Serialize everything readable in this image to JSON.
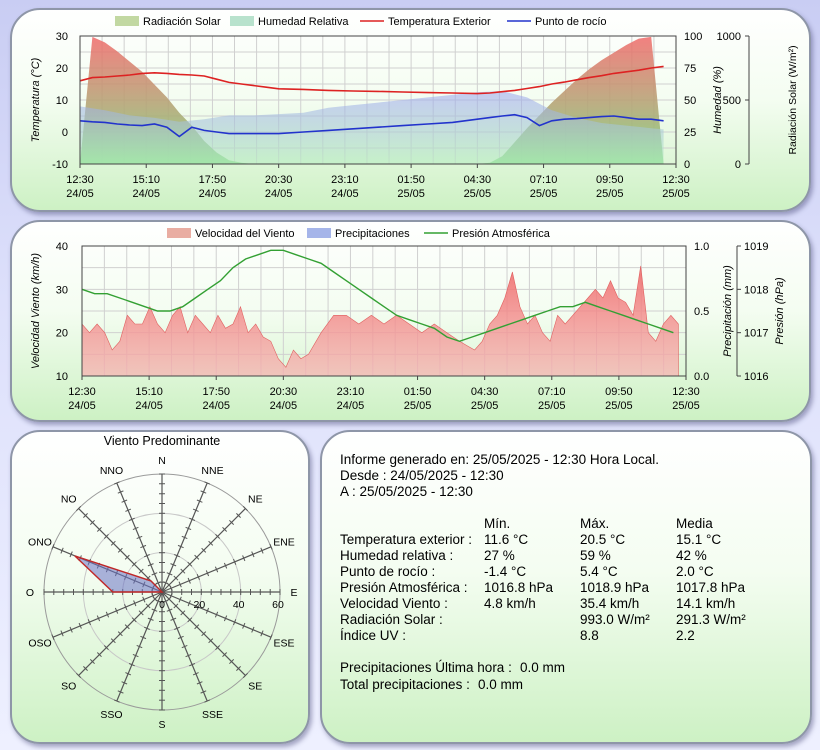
{
  "chart_data": [
    {
      "type": "area",
      "legend": [
        "Radiación Solar",
        "Humedad Relativa",
        "Temperatura Exterior",
        "Punto de rocío"
      ],
      "ylabel": "Temperatura (°C)",
      "ylabel_right": "Humedad (%)",
      "ylabel_right2": "Radiación Solar (W/m²)",
      "ylim": [
        -10,
        30
      ],
      "y_ticks": [
        "30",
        "20",
        "10",
        "0",
        "-10"
      ],
      "y2_ticks": [
        "100",
        "75",
        "50",
        "25",
        "0"
      ],
      "y3_ticks": [
        "1000",
        "500",
        "0"
      ],
      "x_ticks": [
        "12:30",
        "15:10",
        "17:50",
        "20:30",
        "23:10",
        "01:50",
        "04:30",
        "07:10",
        "09:50",
        "12:30"
      ],
      "x_dates": [
        "24/05",
        "24/05",
        "24/05",
        "24/05",
        "24/05",
        "25/05",
        "25/05",
        "25/05",
        "25/05",
        "25/05"
      ],
      "time_start": "24/05 12:30",
      "time_end": "25/05 12:30",
      "series": [
        {
          "name": "Temperatura Exterior",
          "color": "#dd2222",
          "x_h": [
            0,
            0.5,
            1,
            1.5,
            2,
            2.5,
            3,
            3.5,
            4,
            4.5,
            5,
            5.5,
            6,
            6.5,
            7,
            7.5,
            8,
            9,
            10,
            11,
            12,
            13,
            14,
            15,
            16,
            16.5,
            17,
            17.5,
            18,
            18.5,
            19,
            19.5,
            20,
            20.5,
            21,
            21.5,
            22,
            22.5,
            23,
            23.5
          ],
          "values": [
            16,
            17,
            17.2,
            17.5,
            17.8,
            18.3,
            18.5,
            18.3,
            18,
            17.8,
            17.5,
            16.5,
            15.5,
            15,
            14.5,
            14,
            13.5,
            13.3,
            13,
            12.8,
            12.7,
            12.5,
            12.3,
            12.2,
            12,
            12.2,
            12.6,
            13,
            13.6,
            14.2,
            15,
            15.6,
            16.3,
            17,
            17.6,
            18.3,
            18.8,
            19.3,
            20,
            20.5
          ]
        },
        {
          "name": "Punto de rocío",
          "color": "#2233cc",
          "x_h": [
            0,
            0.5,
            1,
            1.5,
            2,
            2.5,
            3,
            3.5,
            4,
            4.5,
            5,
            5.5,
            6,
            7,
            8,
            9,
            10,
            11,
            12,
            13,
            14,
            15,
            16,
            16.5,
            17,
            17.5,
            18,
            18.5,
            19,
            19.5,
            20,
            20.5,
            21,
            21.5,
            22,
            22.5,
            23,
            23.5
          ],
          "values": [
            3.5,
            3.2,
            3,
            2.5,
            2.2,
            2,
            2.5,
            1.5,
            -1.4,
            1.5,
            0.5,
            0,
            -0.5,
            -0.5,
            -0.5,
            0,
            0.5,
            1,
            1.5,
            2,
            2.5,
            3,
            4,
            4.5,
            5,
            5.4,
            4.5,
            2,
            3.5,
            4,
            4.2,
            4.5,
            4.8,
            5,
            4.5,
            4,
            4,
            3.5
          ]
        },
        {
          "name": "Humedad Relativa",
          "color": "#8f98ee",
          "x_h": [
            0,
            1,
            2,
            3,
            4,
            5,
            6,
            7,
            8,
            9,
            10,
            11,
            12,
            13,
            14,
            15,
            16,
            17,
            18,
            19,
            20,
            21,
            22,
            23,
            23.5
          ],
          "values": [
            45,
            42,
            38,
            36,
            33,
            35,
            38,
            38,
            39,
            40,
            44,
            46,
            48,
            50,
            52,
            54,
            56,
            57,
            52,
            42,
            36,
            32,
            30,
            28,
            27
          ]
        },
        {
          "name": "Radiación Solar",
          "color": "#f07878",
          "x_h": [
            0,
            0.5,
            1,
            1.5,
            2,
            2.5,
            3,
            3.5,
            4,
            4.5,
            5,
            5.5,
            6,
            6.5,
            7,
            7.5,
            16,
            16.5,
            17,
            17.5,
            18,
            18.5,
            19,
            19.5,
            20,
            20.5,
            21,
            21.5,
            22,
            22.5,
            23,
            23.5
          ],
          "values": [
            0,
            993,
            950,
            880,
            800,
            720,
            620,
            520,
            400,
            300,
            180,
            90,
            30,
            10,
            0,
            0,
            0,
            10,
            60,
            170,
            280,
            380,
            480,
            570,
            660,
            740,
            810,
            870,
            930,
            980,
            993,
            0
          ]
        }
      ]
    },
    {
      "type": "area",
      "legend": [
        "Velocidad del Viento",
        "Precipitaciones",
        "Presión Atmosférica"
      ],
      "ylabel": "Velocidad Viento (km/h)",
      "ylabel_right": "Precipitación (mm)",
      "ylabel_right2": "Presión (hPa)",
      "ylim": [
        10,
        40
      ],
      "y_ticks": [
        "40",
        "30",
        "20",
        "10"
      ],
      "y2_ticks": [
        "1.0",
        "0.5",
        "0.0"
      ],
      "y3_ticks": [
        "1019",
        "1018",
        "1017",
        "1016"
      ],
      "x_ticks": [
        "12:30",
        "15:10",
        "17:50",
        "20:30",
        "23:10",
        "01:50",
        "04:30",
        "07:10",
        "09:50",
        "12:30"
      ],
      "x_dates": [
        "24/05",
        "24/05",
        "24/05",
        "24/05",
        "24/05",
        "25/05",
        "25/05",
        "25/05",
        "25/05",
        "25/05"
      ],
      "series": [
        {
          "name": "Velocidad del Viento",
          "color": "#f07878",
          "x_h": [
            0,
            0.3,
            0.6,
            0.9,
            1.2,
            1.5,
            1.8,
            2.1,
            2.4,
            2.7,
            3,
            3.3,
            3.6,
            3.9,
            4.2,
            4.5,
            4.8,
            5.1,
            5.4,
            5.7,
            6,
            6.3,
            6.6,
            6.9,
            7.2,
            7.5,
            7.8,
            8.1,
            8.4,
            8.7,
            9,
            9.5,
            10,
            10.5,
            11,
            11.5,
            12,
            12.5,
            13,
            13.5,
            14,
            14.5,
            15,
            15.3,
            15.6,
            15.9,
            16.2,
            16.5,
            16.8,
            17.1,
            17.4,
            17.7,
            18,
            18.3,
            18.6,
            18.9,
            19.2,
            19.5,
            19.8,
            20.1,
            20.4,
            20.7,
            21,
            21.3,
            21.6,
            21.9,
            22.2,
            22.5,
            22.8,
            23.1,
            23.4,
            23.7
          ],
          "values": [
            22,
            20,
            22,
            20,
            16,
            18,
            24,
            22,
            22,
            26,
            22,
            20,
            24,
            26,
            20,
            24,
            22,
            20,
            24,
            21,
            22,
            26,
            20,
            22,
            19,
            18,
            14,
            12,
            16,
            14,
            15,
            20,
            24,
            24,
            22,
            24,
            22,
            24,
            22,
            20,
            22,
            20,
            18,
            17,
            16,
            18,
            22,
            24,
            28,
            34,
            26,
            22,
            24,
            20,
            18,
            24,
            22,
            24,
            26,
            28,
            30,
            28,
            32,
            28,
            27,
            24,
            35.4,
            20,
            18,
            22,
            24,
            22
          ]
        },
        {
          "name": "Presión Atmosférica",
          "color": "#33a033",
          "x_h": [
            0,
            0.5,
            1,
            1.5,
            2,
            2.5,
            3,
            3.5,
            4,
            4.5,
            5,
            5.5,
            6,
            6.5,
            7,
            7.5,
            8,
            8.5,
            9,
            9.5,
            10,
            10.5,
            11,
            11.5,
            12,
            12.5,
            13,
            13.5,
            14,
            14.5,
            15,
            15.5,
            16,
            16.5,
            17,
            17.5,
            18,
            18.5,
            19,
            19.5,
            20,
            20.5,
            21,
            21.5,
            22,
            22.5,
            23,
            23.5
          ],
          "values": [
            1018,
            1017.9,
            1017.9,
            1017.8,
            1017.7,
            1017.6,
            1017.5,
            1017.5,
            1017.6,
            1017.8,
            1018,
            1018.2,
            1018.5,
            1018.7,
            1018.8,
            1018.9,
            1018.9,
            1018.8,
            1018.7,
            1018.6,
            1018.4,
            1018.2,
            1018,
            1017.8,
            1017.6,
            1017.4,
            1017.3,
            1017.2,
            1017.1,
            1016.9,
            1016.8,
            1016.9,
            1017.0,
            1017.1,
            1017.2,
            1017.3,
            1017.4,
            1017.5,
            1017.6,
            1017.6,
            1017.7,
            1017.6,
            1017.5,
            1017.4,
            1017.3,
            1017.2,
            1017.1,
            1017.0
          ]
        }
      ]
    },
    {
      "type": "radar",
      "title": "Viento Predominante",
      "directions": [
        "N",
        "NNE",
        "NE",
        "ENE",
        "E",
        "ESE",
        "SE",
        "SSE",
        "S",
        "SSO",
        "SO",
        "OSO",
        "O",
        "ONO",
        "NO",
        "NNO"
      ],
      "r_ticks": [
        "0",
        "20",
        "40",
        "60"
      ],
      "rmax": 60,
      "values": [
        0,
        0,
        0,
        0,
        0,
        0,
        0,
        0,
        0,
        0,
        0,
        0,
        25,
        48,
        8,
        0
      ]
    }
  ],
  "report": {
    "generated": "Informe generado en: 25/05/2025 - 12:30 Hora Local.",
    "desde": "Desde : 24/05/2025 - 12:30",
    "hasta": "A : 25/05/2025 - 12:30",
    "col_min": "Mín.",
    "col_max": "Máx.",
    "col_avg": "Media",
    "rows": [
      {
        "label": "Temperatura exterior :",
        "min": "11.6 °C",
        "max": "20.5 °C",
        "avg": "15.1 °C"
      },
      {
        "label": "Humedad relativa :",
        "min": "27 %",
        "max": "59 %",
        "avg": "42 %"
      },
      {
        "label": "Punto de rocío :",
        "min": "-1.4 °C",
        "max": "5.4 °C",
        "avg": "2.0 °C"
      },
      {
        "label": "Presión Atmosférica :",
        "min": "1016.8 hPa",
        "max": "1018.9 hPa",
        "avg": "1017.8 hPa"
      },
      {
        "label": "Velocidad Viento :",
        "min": "4.8 km/h",
        "max": "35.4 km/h",
        "avg": "14.1 km/h"
      },
      {
        "label": "Radiación Solar :",
        "min": "",
        "max": "993.0 W/m²",
        "avg": "291.3 W/m²"
      },
      {
        "label": "Índice UV :",
        "min": "",
        "max": "8.8",
        "avg": "2.2"
      }
    ],
    "rain_hour_label": "Precipitaciones Última hora :",
    "rain_hour_value": "0.0 mm",
    "rain_total_label": "Total precipitaciones :",
    "rain_total_value": "0.0 mm"
  }
}
